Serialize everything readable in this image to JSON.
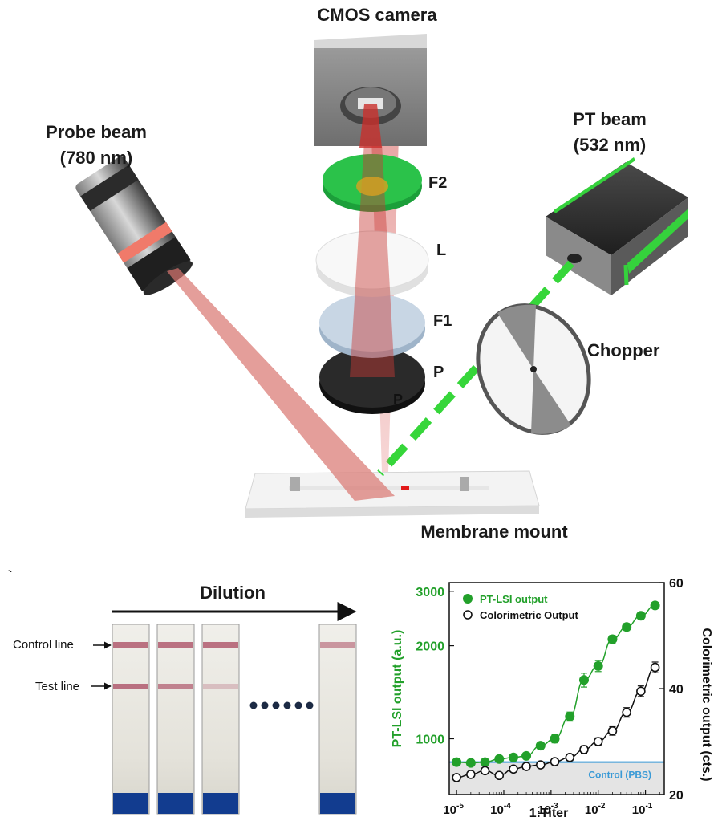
{
  "setup": {
    "camera_label": "CMOS camera",
    "probe_label_line1": "Probe beam",
    "probe_label_line2": "(780 nm)",
    "pt_label_line1": "PT beam",
    "pt_label_line2": "(532 nm)",
    "optics": [
      "F2",
      "L",
      "F1",
      "P"
    ],
    "optic_p_inner": "P",
    "chopper_label": "Chopper",
    "mount_label": "Membrane mount"
  },
  "strips": {
    "tick_mark": "`",
    "dilution_label": "Dilution",
    "control_line_label": "Control line",
    "test_line_label": "Test line",
    "test_line_intensity": [
      1.0,
      0.85,
      0.35,
      0.0
    ]
  },
  "colors": {
    "green": "#22a02a",
    "probe_red": "#d9756f",
    "pbs_blue": "#3a9ad6",
    "strip_blue": "#123c8f",
    "line_pink": "#b05a6e"
  },
  "chart_data": {
    "type": "scatter",
    "xlabel": "1:Titer",
    "ylabel": "PT-LSI output (a.u.)",
    "y2label": "Colorimetric output (cts.)",
    "xscale": "log",
    "yscale": "log",
    "xlim": [
      7e-06,
      0.25
    ],
    "ylim": [
      660,
      3200
    ],
    "y2lim": [
      20,
      60
    ],
    "x_ticks": [
      "10-5",
      "10-4",
      "10-3",
      "10-2",
      "10-1"
    ],
    "y_ticks": [
      {
        "value": 1000,
        "label": "1000"
      },
      {
        "value": 2000,
        "label": "2000"
      },
      {
        "value": 3000,
        "label": "3000"
      }
    ],
    "y2_ticks": [
      {
        "value": 20,
        "label": "20"
      },
      {
        "value": 40,
        "label": "40"
      },
      {
        "value": 60,
        "label": "60"
      }
    ],
    "legend_position": "top-left",
    "control_band": {
      "label": "Control (PBS)",
      "value": 840,
      "lower": 660
    },
    "series": [
      {
        "name": "PT-LSI output",
        "axis": "left",
        "marker": "filled-circle",
        "x": [
          1e-05,
          2e-05,
          4e-05,
          8e-05,
          0.00016,
          0.0003,
          0.0006,
          0.0012,
          0.0025,
          0.005,
          0.01,
          0.02,
          0.04,
          0.08,
          0.16
        ],
        "y": [
          840,
          835,
          840,
          860,
          870,
          880,
          950,
          1000,
          1180,
          1550,
          1720,
          2100,
          2300,
          2500,
          2700
        ],
        "yerr": [
          18,
          18,
          18,
          20,
          20,
          20,
          25,
          30,
          40,
          80,
          70,
          60,
          60,
          60,
          60
        ]
      },
      {
        "name": "Colorimetric Output",
        "axis": "right",
        "marker": "open-circle",
        "x": [
          1e-05,
          2e-05,
          4e-05,
          8e-05,
          0.00016,
          0.0003,
          0.0006,
          0.0012,
          0.0025,
          0.005,
          0.01,
          0.02,
          0.04,
          0.08,
          0.16
        ],
        "y": [
          23.2,
          23.8,
          24.5,
          23.6,
          24.8,
          25.3,
          25.6,
          26.2,
          27.0,
          28.5,
          30.0,
          32.0,
          35.5,
          39.5,
          44.0
        ],
        "yerr": [
          0.5,
          0.5,
          0.5,
          0.5,
          0.5,
          0.5,
          0.5,
          0.6,
          0.6,
          0.7,
          0.7,
          0.8,
          0.9,
          1.0,
          1.0
        ]
      }
    ]
  }
}
